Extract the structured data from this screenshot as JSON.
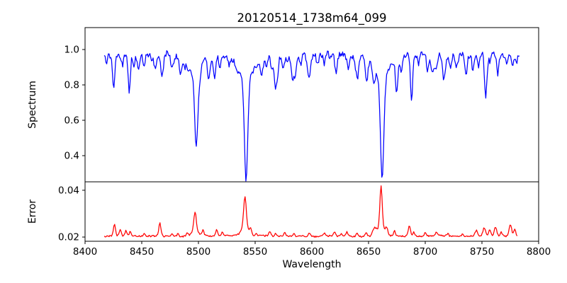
{
  "figure": {
    "background": "#ffffff",
    "axis_color": "#000000",
    "text_color": "#000000"
  },
  "chart_data": [
    {
      "type": "line",
      "panel": "spectrum",
      "title": "20120514_1738m64_099",
      "ylabel": "Spectrum",
      "series_name": "spectrum",
      "series_color": "#0000ff",
      "xlim": [
        8400,
        8800
      ],
      "ylim": [
        0.252,
        1.124
      ],
      "yticks": [
        1.0,
        0.8,
        0.6,
        0.4
      ],
      "ytick_decimals": 1,
      "grid": false,
      "x_range": [
        8417,
        8783
      ],
      "n_points": 520,
      "continuum": 0.972,
      "noise_amplitude": 0.016,
      "wander_amplitude": 0.014,
      "wander_segments": 40,
      "noise_seed": 20120514,
      "random_dips": {
        "count": 60,
        "depth_min": 0.02,
        "depth_max": 0.07,
        "width_min": 0.6,
        "width_max": 1.5
      },
      "absorption_lines_format": "[wavelength_angstrom, depth, gaussian_sigma_angstrom]",
      "absorption_lines": [
        [
          8425,
          0.135,
          1.0
        ],
        [
          8433,
          0.05,
          0.8
        ],
        [
          8439,
          0.215,
          0.9
        ],
        [
          8443,
          0.06,
          0.8
        ],
        [
          8447,
          0.09,
          0.9
        ],
        [
          8452,
          0.07,
          0.8
        ],
        [
          8462,
          0.09,
          1.0
        ],
        [
          8468,
          0.11,
          1.0
        ],
        [
          8476,
          0.06,
          0.9
        ],
        [
          8484,
          0.08,
          0.9
        ],
        [
          8488,
          0.06,
          0.8
        ],
        [
          8498,
          0.42,
          1.4
        ],
        [
          8498,
          0.1,
          5.5
        ],
        [
          8514,
          0.125,
          1.2
        ],
        [
          8519,
          0.07,
          0.9
        ],
        [
          8527,
          0.05,
          0.8
        ],
        [
          8542,
          0.57,
          1.5
        ],
        [
          8542,
          0.12,
          7.0
        ],
        [
          8556,
          0.06,
          0.9
        ],
        [
          8560,
          0.05,
          0.8
        ],
        [
          8570,
          0.05,
          0.8
        ],
        [
          8575,
          0.08,
          0.9
        ],
        [
          8583,
          0.105,
          1.0
        ],
        [
          8590,
          0.06,
          0.9
        ],
        [
          8598,
          0.105,
          1.0
        ],
        [
          8605,
          0.05,
          0.8
        ],
        [
          8611,
          0.06,
          0.9
        ],
        [
          8621,
          0.09,
          1.0
        ],
        [
          8632,
          0.07,
          0.9
        ],
        [
          8641,
          0.05,
          0.8
        ],
        [
          8648,
          0.09,
          1.0
        ],
        [
          8662,
          0.57,
          1.5
        ],
        [
          8662,
          0.12,
          7.0
        ],
        [
          8675,
          0.145,
          1.1
        ],
        [
          8679,
          0.09,
          0.9
        ],
        [
          8688,
          0.245,
          0.9
        ],
        [
          8694,
          0.06,
          0.8
        ],
        [
          8702,
          0.05,
          0.8
        ],
        [
          8710,
          0.07,
          0.9
        ],
        [
          8717,
          0.1,
          1.0
        ],
        [
          8727,
          0.06,
          0.9
        ],
        [
          8736,
          0.1,
          1.0
        ],
        [
          8742,
          0.06,
          0.8
        ],
        [
          8747,
          0.08,
          0.9
        ],
        [
          8757,
          0.05,
          0.8
        ],
        [
          8764,
          0.08,
          0.9
        ],
        [
          8772,
          0.06,
          0.9
        ],
        [
          8777,
          0.05,
          0.8
        ]
      ]
    },
    {
      "type": "line",
      "panel": "error",
      "ylabel": "Error",
      "xlabel": "Wavelength",
      "series_name": "error",
      "series_color": "#ff0000",
      "xlim": [
        8400,
        8800
      ],
      "ylim": [
        0.0182,
        0.0436
      ],
      "yticks": [
        0.04,
        0.02
      ],
      "ytick_decimals": 2,
      "xticks": [
        8400,
        8450,
        8500,
        8550,
        8600,
        8650,
        8700,
        8750,
        8800
      ],
      "grid": false,
      "x_range": [
        8417,
        8781
      ],
      "n_points": 520,
      "baseline": 0.0204,
      "noise_amplitude": 0.00035,
      "wander_amplitude": 0.0002,
      "wander_segments": 40,
      "noise_seed": 1738,
      "emission_peaks_format": "[wavelength_angstrom, height, gaussian_sigma_angstrom]",
      "emission_peaks": [
        [
          8426,
          0.0048,
          0.9
        ],
        [
          8431,
          0.0026,
          0.8
        ],
        [
          8436,
          0.002,
          0.8
        ],
        [
          8440,
          0.002,
          0.8
        ],
        [
          8452,
          0.0012,
          0.8
        ],
        [
          8466,
          0.0054,
          0.9
        ],
        [
          8477,
          0.0013,
          0.8
        ],
        [
          8482,
          0.0016,
          0.8
        ],
        [
          8490,
          0.0012,
          0.8
        ],
        [
          8497,
          0.0085,
          1.1
        ],
        [
          8497,
          0.0018,
          3.0
        ],
        [
          8504,
          0.0022,
          0.9
        ],
        [
          8516,
          0.0026,
          0.9
        ],
        [
          8521,
          0.0014,
          0.8
        ],
        [
          8541,
          0.014,
          1.2
        ],
        [
          8541,
          0.003,
          3.5
        ],
        [
          8546,
          0.0024,
          1.0
        ],
        [
          8551,
          0.0012,
          0.8
        ],
        [
          8563,
          0.002,
          1.0
        ],
        [
          8568,
          0.0013,
          0.8
        ],
        [
          8576,
          0.0014,
          0.9
        ],
        [
          8584,
          0.0011,
          0.8
        ],
        [
          8598,
          0.0013,
          0.9
        ],
        [
          8611,
          0.001,
          0.8
        ],
        [
          8620,
          0.0015,
          0.9
        ],
        [
          8626,
          0.0011,
          0.8
        ],
        [
          8631,
          0.0017,
          0.9
        ],
        [
          8640,
          0.0013,
          0.8
        ],
        [
          8648,
          0.0015,
          0.9
        ],
        [
          8655,
          0.0028,
          1.6
        ],
        [
          8661,
          0.018,
          1.0
        ],
        [
          8661,
          0.0035,
          3.5
        ],
        [
          8666,
          0.0026,
          1.0
        ],
        [
          8673,
          0.0021,
          0.9
        ],
        [
          8686,
          0.0046,
          1.0
        ],
        [
          8690,
          0.0018,
          0.8
        ],
        [
          8700,
          0.0015,
          0.9
        ],
        [
          8710,
          0.0017,
          0.9
        ],
        [
          8720,
          0.001,
          0.8
        ],
        [
          8733,
          0.0011,
          0.8
        ],
        [
          8745,
          0.0024,
          1.0
        ],
        [
          8752,
          0.0034,
          1.1
        ],
        [
          8757,
          0.0026,
          1.0
        ],
        [
          8762,
          0.004,
          1.1
        ],
        [
          8767,
          0.0018,
          0.9
        ],
        [
          8775,
          0.0052,
          1.1
        ],
        [
          8779,
          0.0028,
          0.9
        ]
      ]
    }
  ]
}
